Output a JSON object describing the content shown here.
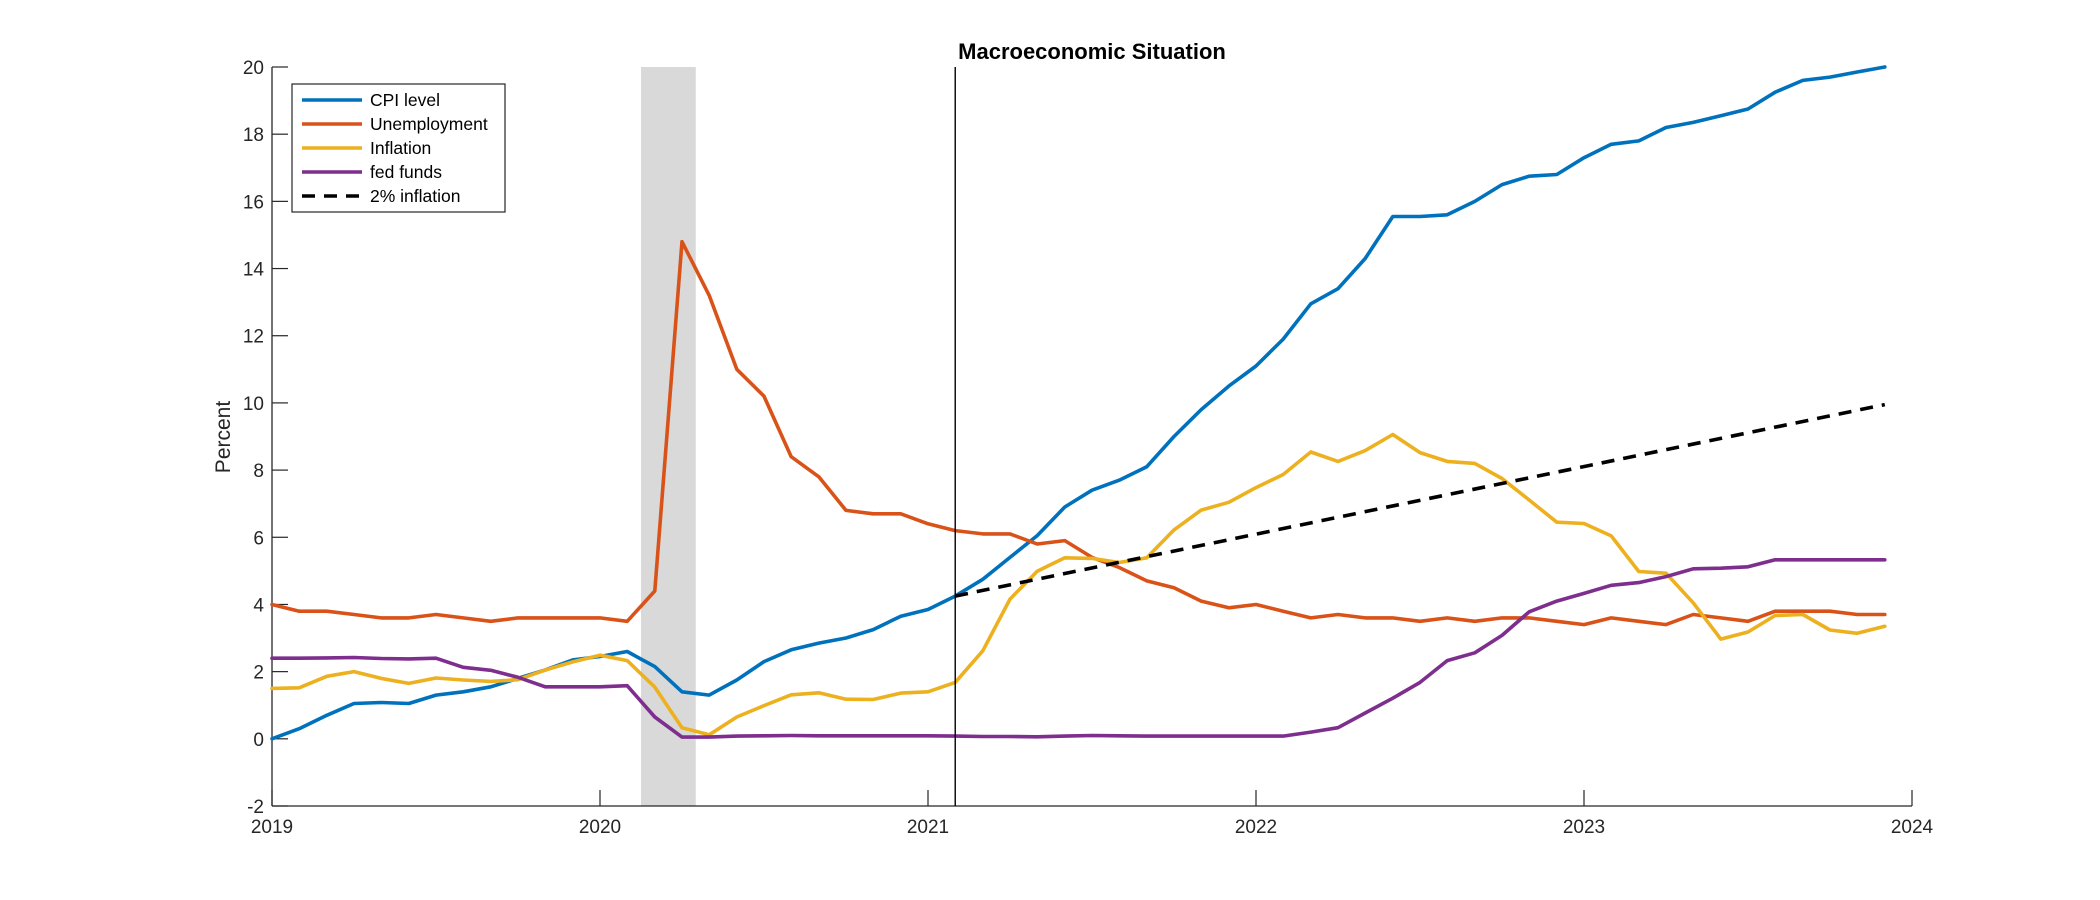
{
  "chart_data": {
    "type": "line",
    "title": "Macroeconomic Situation",
    "xlabel": "",
    "ylabel": "Percent",
    "xlim": [
      2019,
      2024
    ],
    "ylim": [
      -2,
      20
    ],
    "xticks": [
      "2019",
      "2020",
      "2021",
      "2022",
      "2023",
      "2024"
    ],
    "yticks": [
      "-2",
      "0",
      "2",
      "4",
      "6",
      "8",
      "10",
      "12",
      "14",
      "16",
      "18",
      "20"
    ],
    "grid": false,
    "legend_position": "top-left",
    "recession_shading": {
      "start": 2020.125,
      "end": 2020.292,
      "color": "#d9d9d9"
    },
    "vertical_marker_x": 2021.083,
    "series": [
      {
        "name": "CPI level",
        "color": "#0072BD",
        "style": "solid",
        "x": [
          2019.0,
          2019.083,
          2019.167,
          2019.25,
          2019.333,
          2019.417,
          2019.5,
          2019.583,
          2019.667,
          2019.75,
          2019.833,
          2019.917,
          2020.0,
          2020.083,
          2020.167,
          2020.25,
          2020.333,
          2020.417,
          2020.5,
          2020.583,
          2020.667,
          2020.75,
          2020.833,
          2020.917,
          2021.0,
          2021.083,
          2021.167,
          2021.25,
          2021.333,
          2021.417,
          2021.5,
          2021.583,
          2021.667,
          2021.75,
          2021.833,
          2021.917,
          2022.0,
          2022.083,
          2022.167,
          2022.25,
          2022.333,
          2022.417,
          2022.5,
          2022.583,
          2022.667,
          2022.75,
          2022.833,
          2022.917,
          2023.0,
          2023.083,
          2023.167,
          2023.25,
          2023.333,
          2023.417,
          2023.5,
          2023.583,
          2023.667,
          2023.75,
          2023.833,
          2023.917
        ],
        "values": [
          0.0,
          0.3,
          0.7,
          1.05,
          1.08,
          1.05,
          1.3,
          1.4,
          1.55,
          1.8,
          2.05,
          2.35,
          2.45,
          2.6,
          2.15,
          1.4,
          1.3,
          1.75,
          2.3,
          2.65,
          2.85,
          3.0,
          3.25,
          3.65,
          3.85,
          4.25,
          4.75,
          5.4,
          6.05,
          6.9,
          7.4,
          7.7,
          8.1,
          9.0,
          9.8,
          10.5,
          11.1,
          11.9,
          12.95,
          13.4,
          14.3,
          15.55,
          15.55,
          15.6,
          16.0,
          16.5,
          16.75,
          16.8,
          17.3,
          17.7,
          17.8,
          18.2,
          18.35,
          18.55,
          18.75,
          19.25,
          19.6,
          19.7,
          19.85,
          20.0
        ]
      },
      {
        "name": "Unemployment",
        "color": "#D95319",
        "style": "solid",
        "x": [
          2019.0,
          2019.083,
          2019.167,
          2019.25,
          2019.333,
          2019.417,
          2019.5,
          2019.583,
          2019.667,
          2019.75,
          2019.833,
          2019.917,
          2020.0,
          2020.083,
          2020.167,
          2020.25,
          2020.333,
          2020.417,
          2020.5,
          2020.583,
          2020.667,
          2020.75,
          2020.833,
          2020.917,
          2021.0,
          2021.083,
          2021.167,
          2021.25,
          2021.333,
          2021.417,
          2021.5,
          2021.583,
          2021.667,
          2021.75,
          2021.833,
          2021.917,
          2022.0,
          2022.083,
          2022.167,
          2022.25,
          2022.333,
          2022.417,
          2022.5,
          2022.583,
          2022.667,
          2022.75,
          2022.833,
          2022.917,
          2023.0,
          2023.083,
          2023.167,
          2023.25,
          2023.333,
          2023.417,
          2023.5,
          2023.583,
          2023.667,
          2023.75,
          2023.833,
          2023.917
        ],
        "values": [
          4.0,
          3.8,
          3.8,
          3.7,
          3.6,
          3.6,
          3.7,
          3.6,
          3.5,
          3.6,
          3.6,
          3.6,
          3.6,
          3.5,
          4.4,
          14.8,
          13.2,
          11.0,
          10.2,
          8.4,
          7.8,
          6.8,
          6.7,
          6.7,
          6.4,
          6.2,
          6.1,
          6.1,
          5.8,
          5.9,
          5.4,
          5.1,
          4.7,
          4.5,
          4.1,
          3.9,
          4.0,
          3.8,
          3.6,
          3.7,
          3.6,
          3.6,
          3.5,
          3.6,
          3.5,
          3.6,
          3.6,
          3.5,
          3.4,
          3.6,
          3.5,
          3.4,
          3.7,
          3.6,
          3.5,
          3.8,
          3.8,
          3.8,
          3.7,
          3.7
        ]
      },
      {
        "name": "Inflation",
        "color": "#EDB120",
        "style": "solid",
        "x": [
          2019.0,
          2019.083,
          2019.167,
          2019.25,
          2019.333,
          2019.417,
          2019.5,
          2019.583,
          2019.667,
          2019.75,
          2019.833,
          2019.917,
          2020.0,
          2020.083,
          2020.167,
          2020.25,
          2020.333,
          2020.417,
          2020.5,
          2020.583,
          2020.667,
          2020.75,
          2020.833,
          2020.917,
          2021.0,
          2021.083,
          2021.167,
          2021.25,
          2021.333,
          2021.417,
          2021.5,
          2021.583,
          2021.667,
          2021.75,
          2021.833,
          2021.917,
          2022.0,
          2022.083,
          2022.167,
          2022.25,
          2022.333,
          2022.417,
          2022.5,
          2022.583,
          2022.667,
          2022.75,
          2022.833,
          2022.917,
          2023.0,
          2023.083,
          2023.167,
          2023.25,
          2023.333,
          2023.417,
          2023.5,
          2023.583,
          2023.667,
          2023.75,
          2023.833,
          2023.917
        ],
        "values": [
          1.5,
          1.52,
          1.86,
          2.0,
          1.8,
          1.65,
          1.81,
          1.75,
          1.71,
          1.76,
          2.05,
          2.29,
          2.49,
          2.33,
          1.54,
          0.33,
          0.12,
          0.65,
          0.99,
          1.31,
          1.37,
          1.18,
          1.17,
          1.36,
          1.4,
          1.68,
          2.62,
          4.16,
          4.99,
          5.39,
          5.37,
          5.25,
          5.39,
          6.22,
          6.81,
          7.04,
          7.48,
          7.87,
          8.54,
          8.26,
          8.58,
          9.06,
          8.52,
          8.26,
          8.2,
          7.75,
          7.11,
          6.45,
          6.41,
          6.04,
          4.98,
          4.93,
          4.05,
          2.97,
          3.18,
          3.67,
          3.7,
          3.24,
          3.14,
          3.35
        ]
      },
      {
        "name": "fed funds",
        "color": "#7E2F8E",
        "style": "solid",
        "x": [
          2019.0,
          2019.083,
          2019.167,
          2019.25,
          2019.333,
          2019.417,
          2019.5,
          2019.583,
          2019.667,
          2019.75,
          2019.833,
          2019.917,
          2020.0,
          2020.083,
          2020.167,
          2020.25,
          2020.333,
          2020.417,
          2020.5,
          2020.583,
          2020.667,
          2020.75,
          2020.833,
          2020.917,
          2021.0,
          2021.083,
          2021.167,
          2021.25,
          2021.333,
          2021.417,
          2021.5,
          2021.583,
          2021.667,
          2021.75,
          2021.833,
          2021.917,
          2022.0,
          2022.083,
          2022.167,
          2022.25,
          2022.333,
          2022.417,
          2022.5,
          2022.583,
          2022.667,
          2022.75,
          2022.833,
          2022.917,
          2023.0,
          2023.083,
          2023.167,
          2023.25,
          2023.333,
          2023.417,
          2023.5,
          2023.583,
          2023.667,
          2023.75,
          2023.833,
          2023.917
        ],
        "values": [
          2.4,
          2.4,
          2.41,
          2.42,
          2.39,
          2.38,
          2.4,
          2.13,
          2.04,
          1.83,
          1.55,
          1.55,
          1.55,
          1.58,
          0.65,
          0.05,
          0.05,
          0.08,
          0.09,
          0.1,
          0.09,
          0.09,
          0.09,
          0.09,
          0.09,
          0.08,
          0.07,
          0.07,
          0.06,
          0.08,
          0.1,
          0.09,
          0.08,
          0.08,
          0.08,
          0.08,
          0.08,
          0.08,
          0.2,
          0.33,
          0.77,
          1.21,
          1.68,
          2.33,
          2.56,
          3.08,
          3.78,
          4.1,
          4.33,
          4.57,
          4.65,
          4.83,
          5.06,
          5.08,
          5.12,
          5.33,
          5.33,
          5.33,
          5.33,
          5.33
        ]
      },
      {
        "name": "2% inflation",
        "color": "#000000",
        "style": "dashed",
        "x": [
          2021.083,
          2023.917
        ],
        "values": [
          4.25,
          9.95
        ]
      }
    ]
  }
}
